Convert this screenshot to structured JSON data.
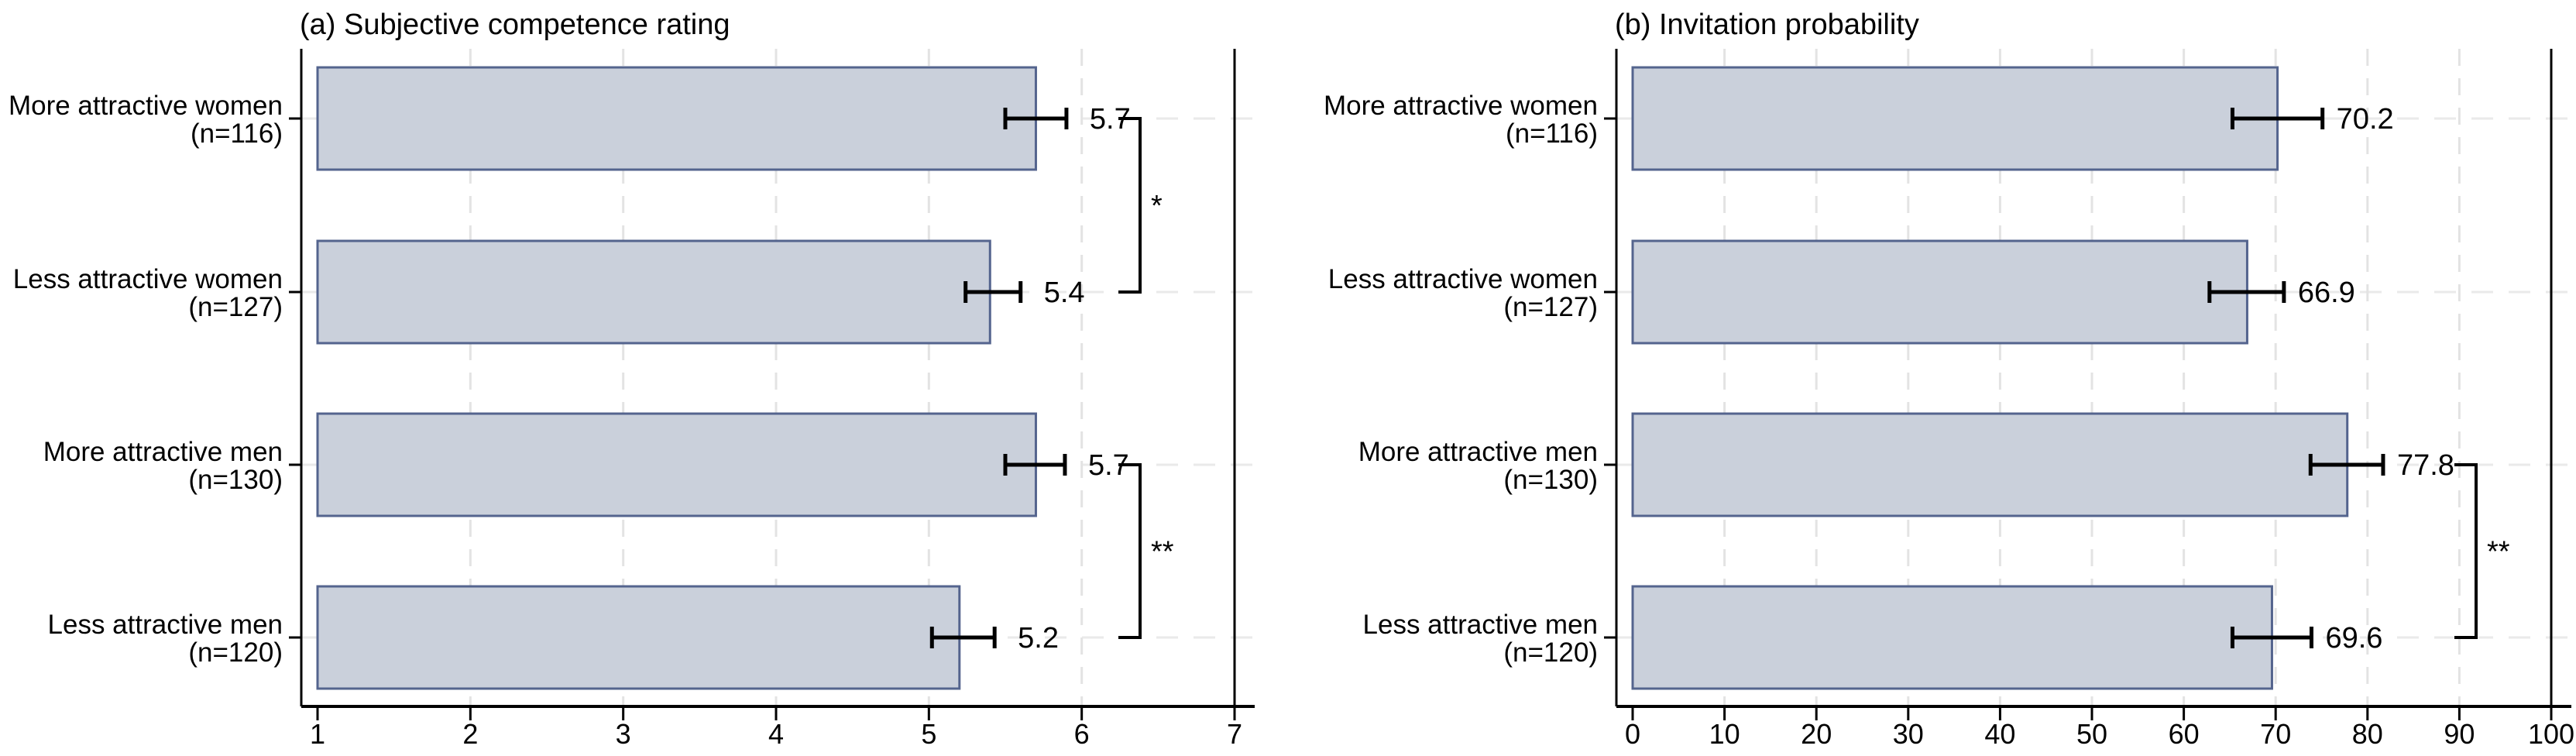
{
  "figure": {
    "background": "#ffffff",
    "bar_fill_color": "#cad0db",
    "bar_border_color": "#54648e",
    "grid_color": "#e3e3e3",
    "row_grid_color": "#eaeaea",
    "axis_color": "#000000",
    "text_color": "#000000"
  },
  "row_labels": [
    {
      "line1": "More attractive women",
      "line2": "(n=116)"
    },
    {
      "line1": "Less attractive women",
      "line2": "(n=127)"
    },
    {
      "line1": "More attractive men",
      "line2": "(n=130)"
    },
    {
      "line1": "Less attractive men",
      "line2": "(n=120)"
    }
  ],
  "chart_data": [
    {
      "type": "bar",
      "orientation": "horizontal",
      "title": "(a) Subjective competence rating",
      "categories": [
        "More attractive women (n=116)",
        "Less attractive women (n=127)",
        "More attractive men (n=130)",
        "Less attractive men (n=120)"
      ],
      "values": [
        5.7,
        5.4,
        5.7,
        5.2
      ],
      "value_labels": [
        "5.7",
        "5.4",
        "5.7",
        "5.2"
      ],
      "ci": [
        [
          5.5,
          5.9
        ],
        [
          5.24,
          5.6
        ],
        [
          5.5,
          5.89
        ],
        [
          5.02,
          5.43
        ]
      ],
      "xlim": [
        1,
        7
      ],
      "xticks": [
        "1",
        "2",
        "3",
        "4",
        "5",
        "6",
        "7"
      ],
      "grid": true,
      "legend": "none",
      "significance": [
        {
          "pair": [
            0,
            1
          ],
          "label": "*"
        },
        {
          "pair": [
            2,
            3
          ],
          "label": "**"
        }
      ]
    },
    {
      "type": "bar",
      "orientation": "horizontal",
      "title": "(b) Invitation probability",
      "categories": [
        "More attractive women (n=116)",
        "Less attractive women (n=127)",
        "More attractive men (n=130)",
        "Less attractive men (n=120)"
      ],
      "values": [
        70.2,
        66.9,
        77.8,
        69.6
      ],
      "value_labels": [
        "70.2",
        "66.9",
        "77.8",
        "69.6"
      ],
      "ci": [
        [
          65.3,
          75.1
        ],
        [
          62.8,
          70.9
        ],
        [
          73.8,
          81.7
        ],
        [
          65.3,
          73.9
        ]
      ],
      "xlim": [
        0,
        100
      ],
      "xticks": [
        "0",
        "10",
        "20",
        "30",
        "40",
        "50",
        "60",
        "70",
        "80",
        "90",
        "100"
      ],
      "grid": true,
      "legend": "none",
      "significance": [
        {
          "pair": [
            2,
            3
          ],
          "label": "**"
        }
      ]
    }
  ]
}
